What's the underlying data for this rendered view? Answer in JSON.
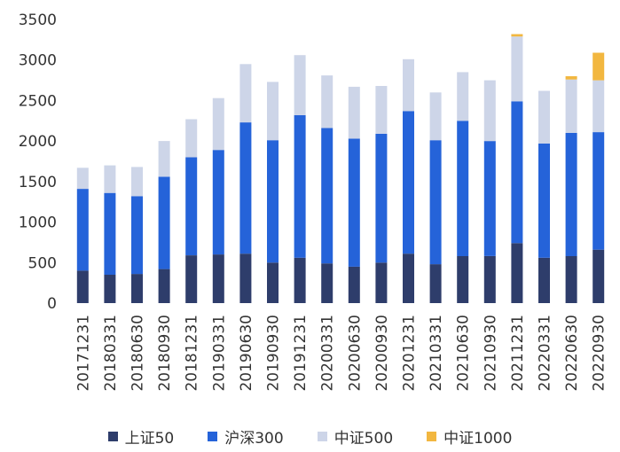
{
  "chart_data": {
    "type": "bar",
    "stacked": true,
    "title": "",
    "xlabel": "",
    "ylabel": "",
    "ylim": [
      0,
      3500
    ],
    "yticks": [
      0,
      500,
      1000,
      1500,
      2000,
      2500,
      3000,
      3500
    ],
    "grid": false,
    "legend_position": "bottom",
    "categories": [
      "20171231",
      "20180331",
      "20180630",
      "20180930",
      "20181231",
      "20190331",
      "20190630",
      "20190930",
      "20191231",
      "20200331",
      "20200630",
      "20200930",
      "20201231",
      "20210331",
      "20210630",
      "20210930",
      "20211231",
      "20220331",
      "20220630",
      "20220930"
    ],
    "series": [
      {
        "name": "上证50",
        "color": "#2e3d6b",
        "values": [
          400,
          350,
          360,
          420,
          590,
          600,
          610,
          500,
          560,
          490,
          450,
          500,
          610,
          480,
          580,
          580,
          740,
          560,
          580,
          660
        ]
      },
      {
        "name": "沪深300",
        "color": "#2563d9",
        "values": [
          1010,
          1010,
          960,
          1140,
          1210,
          1290,
          1620,
          1510,
          1760,
          1670,
          1580,
          1590,
          1760,
          1530,
          1670,
          1420,
          1750,
          1410,
          1520,
          1450
        ]
      },
      {
        "name": "中证500",
        "color": "#cdd5e8",
        "values": [
          260,
          340,
          360,
          440,
          470,
          640,
          720,
          720,
          740,
          650,
          640,
          590,
          640,
          590,
          600,
          750,
          800,
          650,
          660,
          640
        ]
      },
      {
        "name": "中证1000",
        "color": "#f2b740",
        "values": [
          0,
          0,
          0,
          0,
          0,
          0,
          0,
          0,
          0,
          0,
          0,
          0,
          0,
          0,
          0,
          0,
          30,
          0,
          40,
          340
        ]
      }
    ]
  }
}
